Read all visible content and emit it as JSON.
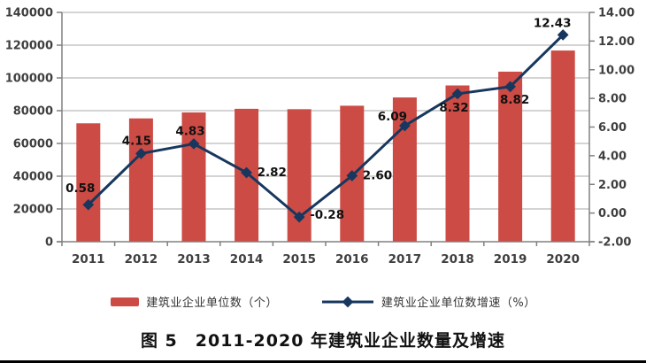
{
  "chart_data": {
    "type": "bar",
    "categories": [
      "2011",
      "2012",
      "2013",
      "2014",
      "2015",
      "2016",
      "2017",
      "2018",
      "2019",
      "2020"
    ],
    "series": [
      {
        "name": "建筑业企业单位数（个）",
        "type": "bar",
        "axis": "left",
        "values": [
          72280,
          75280,
          78919,
          81141,
          80911,
          83017,
          88074,
          95400,
          103814,
          116716
        ]
      },
      {
        "name": "建筑业企业单位数增速（%）",
        "type": "line",
        "axis": "right",
        "values": [
          0.58,
          4.15,
          4.83,
          2.82,
          -0.28,
          2.6,
          6.09,
          8.32,
          8.82,
          12.43
        ],
        "point_labels": [
          "0.58",
          "4.15",
          "4.83",
          "2.82",
          "-0.28",
          "2.60",
          "6.09",
          "8.32",
          "8.82",
          "12.43"
        ]
      }
    ],
    "left_axis": {
      "min": 0,
      "max": 140000,
      "step": 20000,
      "tick_labels": [
        "0",
        "20000",
        "40000",
        "60000",
        "80000",
        "100000",
        "120000",
        "140000"
      ]
    },
    "right_axis": {
      "min": -2,
      "max": 14,
      "step": 2,
      "tick_labels": [
        "-2.00",
        "0.00",
        "2.00",
        "4.00",
        "6.00",
        "8.00",
        "10.00",
        "12.00",
        "14.00"
      ]
    },
    "grid": true,
    "legend_position": "bottom",
    "title": "图 5　2011-2020 年建筑业企业数量及增速"
  },
  "legend": {
    "bar_label": "建筑业企业单位数（个）",
    "line_label": "建筑业企业单位数增速（%）"
  },
  "caption": "图 5　2011-2020 年建筑业企业数量及增速",
  "colors": {
    "bar": "#CC4B45",
    "line": "#17375E",
    "marker": "#17375E",
    "grid": "#A9A9A9",
    "axis": "#808080",
    "axis_text": "#3F3F3F",
    "data_label": "#111111"
  }
}
